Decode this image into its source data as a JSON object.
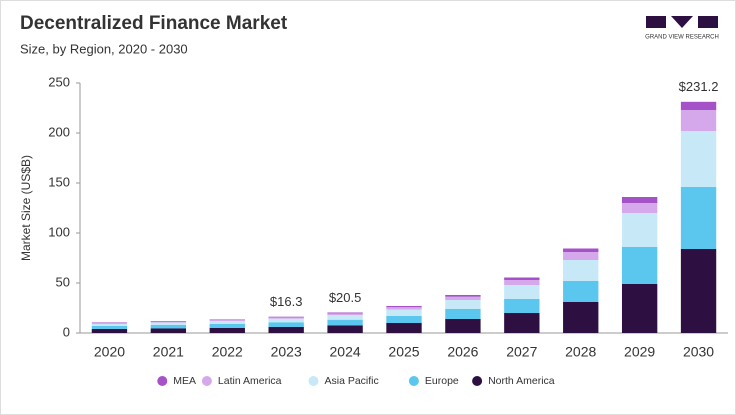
{
  "chart_data": {
    "type": "stacked-bar",
    "title": "Decentralized Finance Market",
    "subtitle": "Size, by Region, 2020 - 2030",
    "brand": "GRAND VIEW RESEARCH",
    "ylabel": "Market Size (US$B)",
    "categories": [
      "2020",
      "2021",
      "2022",
      "2023",
      "2024",
      "2025",
      "2026",
      "2027",
      "2028",
      "2029",
      "2030"
    ],
    "series": [
      {
        "name": "North America",
        "color": "#2d0f41",
        "values": [
          4,
          4.5,
          5,
          6,
          7.5,
          10,
          14,
          20,
          31,
          49,
          84
        ]
      },
      {
        "name": "Europe",
        "color": "#5bc6ee",
        "values": [
          3,
          3.5,
          4,
          4.7,
          5.8,
          7,
          10,
          14,
          21,
          37,
          62
        ]
      },
      {
        "name": "Asia Pacific",
        "color": "#c6e8f7",
        "values": [
          2,
          2.5,
          3,
          3.6,
          4.6,
          6.5,
          9,
          14,
          21,
          34,
          56
        ]
      },
      {
        "name": "Latin America",
        "color": "#d4a8ea",
        "values": [
          1,
          1,
          1,
          1.3,
          1.7,
          2.3,
          3.3,
          5,
          8,
          10,
          21
        ]
      },
      {
        "name": "MEA",
        "color": "#a552c8",
        "values": [
          0.5,
          0.5,
          0.5,
          0.7,
          0.9,
          1.2,
          1.7,
          2.5,
          3.5,
          6,
          8.2
        ]
      }
    ],
    "annotations": [
      {
        "category": "2023",
        "value": 16.3,
        "label": "$16.3"
      },
      {
        "category": "2024",
        "value": 20.5,
        "label": "$20.5"
      },
      {
        "category": "2030",
        "value": 231.2,
        "label": "$231.2"
      }
    ],
    "ylim": [
      0,
      250
    ],
    "yticks": [
      0,
      50,
      100,
      150,
      200,
      250
    ],
    "grid": false,
    "legend": "bottom"
  }
}
